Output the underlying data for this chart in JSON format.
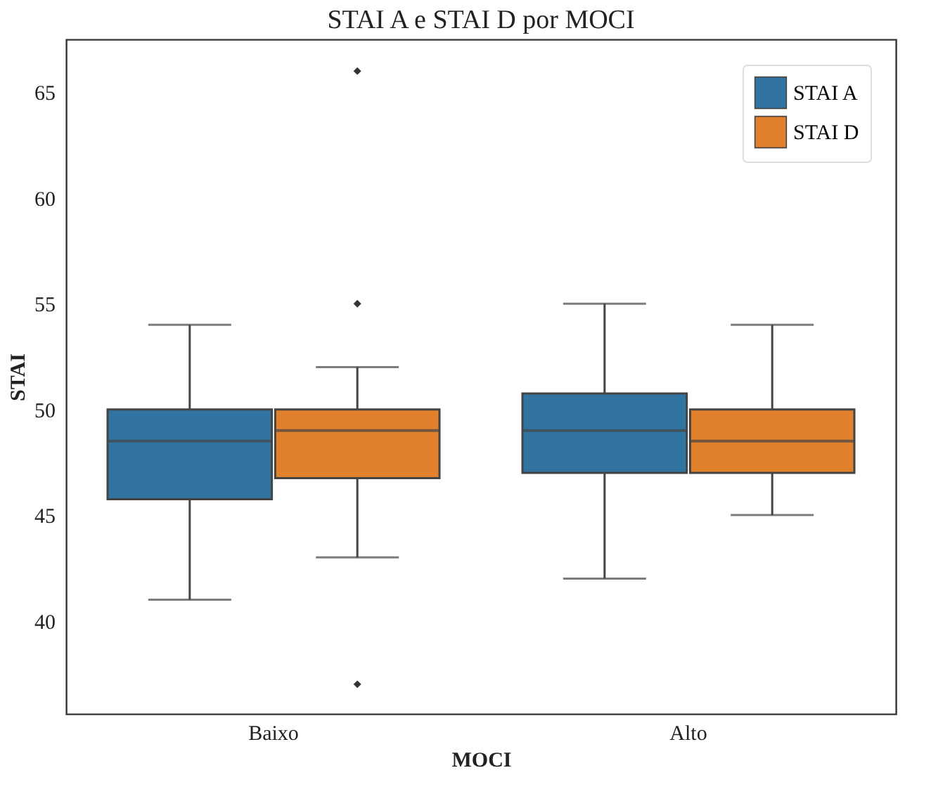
{
  "chart_data": {
    "type": "box",
    "title": "STAI A e STAI D por MOCI",
    "xlabel": "MOCI",
    "ylabel": "STAI",
    "categories": [
      "Baixo",
      "Alto"
    ],
    "series": [
      {
        "name": "STAI A",
        "color": "#3274a1",
        "boxes": [
          {
            "low": 41,
            "q1": 45.75,
            "median": 48.5,
            "q3": 50,
            "high": 54
          },
          {
            "low": 42,
            "q1": 47,
            "median": 49,
            "q3": 50.75,
            "high": 55
          }
        ]
      },
      {
        "name": "STAI D",
        "color": "#e1812c",
        "boxes": [
          {
            "low": 43,
            "q1": 46.75,
            "median": 49,
            "q3": 50,
            "high": 52,
            "outliers": [
              66,
              55,
              37
            ]
          },
          {
            "low": 45,
            "q1": 47,
            "median": 48.5,
            "q3": 50,
            "high": 54
          }
        ]
      }
    ],
    "ylim": [
      35.6,
      67.5
    ],
    "yticks": [
      40,
      45,
      50,
      55,
      60,
      65
    ],
    "legend": "top right"
  }
}
